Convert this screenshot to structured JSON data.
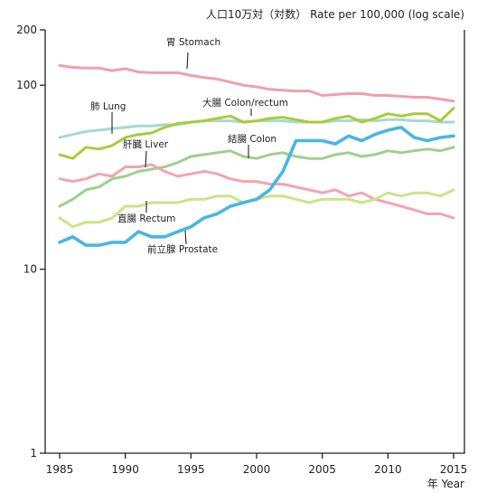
{
  "chart_data": {
    "type": "line",
    "title": "人口10万対（対数） Rate per 100,000 (log scale)",
    "xlabel": "年  Year",
    "ylabel": "",
    "x_scale": "linear",
    "y_scale": "log",
    "xlim": [
      1985,
      2015
    ],
    "ylim": [
      1,
      200
    ],
    "grid": false,
    "legend": "none",
    "x_ticks": [
      1985,
      1990,
      1995,
      2000,
      2005,
      2010,
      2015
    ],
    "x_tick_labels": [
      "1985",
      "1990",
      "1995",
      "2000",
      "2005",
      "2010",
      "2015"
    ],
    "y_ticks": [
      1,
      10,
      100,
      200
    ],
    "y_tick_labels": [
      "1",
      "10",
      "100",
      "200"
    ],
    "x": [
      1985,
      1986,
      1987,
      1988,
      1989,
      1990,
      1991,
      1992,
      1993,
      1994,
      1995,
      1996,
      1997,
      1998,
      1999,
      2000,
      2001,
      2002,
      2003,
      2004,
      2005,
      2006,
      2007,
      2008,
      2009,
      2010,
      2011,
      2012,
      2013,
      2014,
      2015
    ],
    "series": [
      {
        "name": "胃 Stomach",
        "color": "#f0a0ad",
        "values": [
          128,
          125,
          124,
          124,
          120,
          123,
          118,
          117,
          117,
          117,
          113,
          110,
          108,
          104,
          100,
          98,
          95,
          94,
          93,
          93,
          88,
          89,
          90,
          90,
          88,
          88,
          87,
          86,
          86,
          84,
          82
        ]
      },
      {
        "name": "肺 Lung",
        "color": "#a8d8d4",
        "values": [
          52,
          54,
          56,
          57,
          58,
          59,
          60,
          60,
          61,
          61,
          63,
          64,
          64,
          64,
          63,
          64,
          64,
          64,
          63,
          63,
          63,
          64,
          64,
          65,
          64,
          65,
          65,
          64,
          64,
          63,
          63
        ]
      },
      {
        "name": "大腸 Colon/rectum",
        "color": "#a8cc3a",
        "values": [
          42,
          40,
          46,
          45,
          47,
          52,
          54,
          55,
          59,
          62,
          63,
          64,
          66,
          68,
          63,
          64,
          66,
          67,
          65,
          63,
          63,
          66,
          68,
          63,
          66,
          70,
          68,
          70,
          70,
          64,
          75
        ]
      },
      {
        "name": "結腸 Colon",
        "color": "#9fd08c",
        "values": [
          22,
          24,
          27,
          28,
          31,
          32,
          34,
          35,
          36,
          38,
          41,
          42,
          43,
          44,
          41,
          40,
          42,
          43,
          41,
          40,
          40,
          42,
          43,
          41,
          42,
          44,
          43,
          44,
          45,
          44,
          46
        ]
      },
      {
        "name": "肝臓 Liver",
        "color": "#f2a5b0",
        "values": [
          31,
          30,
          31,
          33,
          32,
          36,
          36,
          37,
          34,
          32,
          33,
          34,
          33,
          31,
          30,
          30,
          29,
          29,
          28,
          27,
          26,
          27,
          25,
          26,
          24,
          23,
          22,
          21,
          20,
          20,
          19
        ]
      },
      {
        "name": "直腸 Rectum",
        "color": "#cbe48a",
        "values": [
          19,
          17,
          18,
          18,
          19,
          22,
          22,
          23,
          23,
          23,
          24,
          24,
          25,
          25,
          23,
          24,
          25,
          25,
          24,
          23,
          24,
          24,
          24,
          23,
          24,
          26,
          25,
          26,
          26,
          25,
          27
        ]
      },
      {
        "name": "前立腺 Prostate",
        "color": "#48b6e4",
        "values": [
          14,
          15,
          13.5,
          13.5,
          14,
          14,
          16,
          15,
          15,
          16,
          17,
          19,
          20,
          22,
          23,
          24,
          27,
          34,
          50,
          50,
          50,
          48,
          53,
          50,
          54,
          57,
          59,
          52,
          50,
          52,
          53
        ]
      }
    ],
    "annotations": [
      {
        "series": "胃 Stomach",
        "text": "胃 Stomach"
      },
      {
        "series": "肺 Lung",
        "text": "肺 Lung"
      },
      {
        "series": "大腸 Colon/rectum",
        "text": "大腸 Colon/rectum"
      },
      {
        "series": "結腸 Colon",
        "text": "結腸 Colon"
      },
      {
        "series": "肝臓 Liver",
        "text": "肝臓 Liver"
      },
      {
        "series": "直腸 Rectum",
        "text": "直腸 Rectum"
      },
      {
        "series": "前立腺 Prostate",
        "text": "前立腺 Prostate"
      }
    ]
  }
}
